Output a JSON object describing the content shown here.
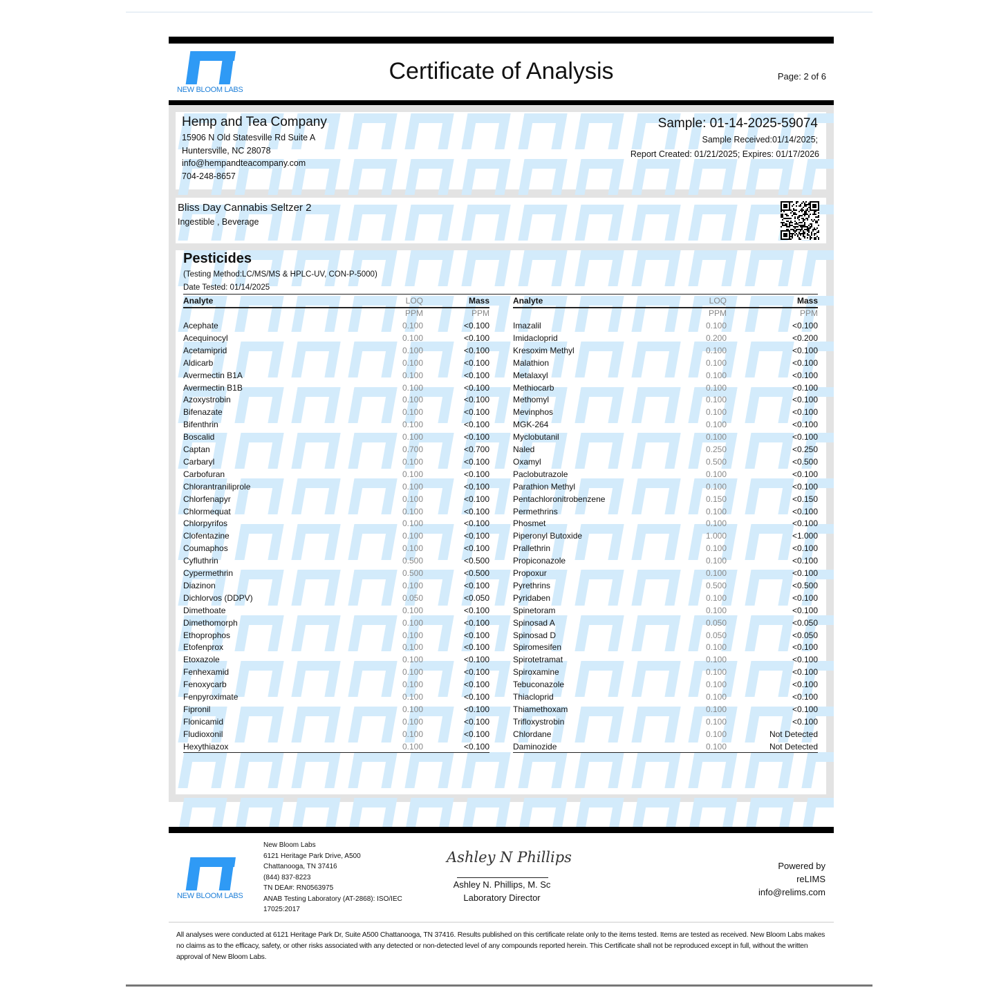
{
  "header": {
    "title": "Certificate of Analysis",
    "page": "Page: 2 of 6",
    "lab_logo_text": "NEW BLOOM LABS"
  },
  "client": {
    "name": "Hemp and Tea Company",
    "address1": "15906 N Old Statesville Rd Suite A",
    "address2": "Huntersville, NC 28078",
    "email": "info@hempandteacompany.com",
    "phone": "704-248-8657"
  },
  "sample": {
    "id": "Sample: 01-14-2025-59074",
    "received": "Sample Received:01/14/2025;",
    "created": "Report Created: 01/21/2025; Expires: 01/17/2026"
  },
  "product": {
    "name": "Bliss Day Cannabis Seltzer 2",
    "type": "Ingestible , Beverage",
    "qr_icon": "qr-code-icon"
  },
  "pesticides": {
    "title": "Pesticides",
    "method": "(Testing Method:LC/MS/MS & HPLC-UV, CON-P-5000)",
    "date_tested": "Date Tested: 01/14/2025",
    "columns": {
      "analyte": "Analyte",
      "loq": "LOQ",
      "mass": "Mass",
      "unit": "PPM"
    },
    "left": [
      [
        "Acephate",
        "0.100",
        "<0.100"
      ],
      [
        "Acequinocyl",
        "0.100",
        "<0.100"
      ],
      [
        "Acetamiprid",
        "0.100",
        "<0.100"
      ],
      [
        "Aldicarb",
        "0.100",
        "<0.100"
      ],
      [
        "Avermectin B1A",
        "0.100",
        "<0.100"
      ],
      [
        "Avermectin B1B",
        "0.100",
        "<0.100"
      ],
      [
        "Azoxystrobin",
        "0.100",
        "<0.100"
      ],
      [
        "Bifenazate",
        "0.100",
        "<0.100"
      ],
      [
        "Bifenthrin",
        "0.100",
        "<0.100"
      ],
      [
        "Boscalid",
        "0.100",
        "<0.100"
      ],
      [
        "Captan",
        "0.700",
        "<0.700"
      ],
      [
        "Carbaryl",
        "0.100",
        "<0.100"
      ],
      [
        "Carbofuran",
        "0.100",
        "<0.100"
      ],
      [
        "Chlorantraniliprole",
        "0.100",
        "<0.100"
      ],
      [
        "Chlorfenapyr",
        "0.100",
        "<0.100"
      ],
      [
        "Chlormequat",
        "0.100",
        "<0.100"
      ],
      [
        "Chlorpyrifos",
        "0.100",
        "<0.100"
      ],
      [
        "Clofentazine",
        "0.100",
        "<0.100"
      ],
      [
        "Coumaphos",
        "0.100",
        "<0.100"
      ],
      [
        "Cyfluthrin",
        "0.500",
        "<0.500"
      ],
      [
        "Cypermethrin",
        "0.500",
        "<0.500"
      ],
      [
        "Diazinon",
        "0.100",
        "<0.100"
      ],
      [
        "Dichlorvos (DDPV)",
        "0.050",
        "<0.050"
      ],
      [
        "Dimethoate",
        "0.100",
        "<0.100"
      ],
      [
        "Dimethomorph",
        "0.100",
        "<0.100"
      ],
      [
        "Ethoprophos",
        "0.100",
        "<0.100"
      ],
      [
        "Etofenprox",
        "0.100",
        "<0.100"
      ],
      [
        "Etoxazole",
        "0.100",
        "<0.100"
      ],
      [
        "Fenhexamid",
        "0.100",
        "<0.100"
      ],
      [
        "Fenoxycarb",
        "0.100",
        "<0.100"
      ],
      [
        "Fenpyroximate",
        "0.100",
        "<0.100"
      ],
      [
        "Fipronil",
        "0.100",
        "<0.100"
      ],
      [
        "Flonicamid",
        "0.100",
        "<0.100"
      ],
      [
        "Fludioxonil",
        "0.100",
        "<0.100"
      ],
      [
        "Hexythiazox",
        "0.100",
        "<0.100"
      ]
    ],
    "right": [
      [
        "Imazalil",
        "0.100",
        "<0.100"
      ],
      [
        "Imidacloprid",
        "0.200",
        "<0.200"
      ],
      [
        "Kresoxim Methyl",
        "0.100",
        "<0.100"
      ],
      [
        "Malathion",
        "0.100",
        "<0.100"
      ],
      [
        "Metalaxyl",
        "0.100",
        "<0.100"
      ],
      [
        "Methiocarb",
        "0.100",
        "<0.100"
      ],
      [
        "Methomyl",
        "0.100",
        "<0.100"
      ],
      [
        "Mevinphos",
        "0.100",
        "<0.100"
      ],
      [
        "MGK-264",
        "0.100",
        "<0.100"
      ],
      [
        "Myclobutanil",
        "0.100",
        "<0.100"
      ],
      [
        "Naled",
        "0.250",
        "<0.250"
      ],
      [
        "Oxamyl",
        "0.500",
        "<0.500"
      ],
      [
        "Paclobutrazole",
        "0.100",
        "<0.100"
      ],
      [
        "Parathion Methyl",
        "0.100",
        "<0.100"
      ],
      [
        "Pentachloronitrobenzene",
        "0.150",
        "<0.150"
      ],
      [
        "Permethrins",
        "0.100",
        "<0.100"
      ],
      [
        "Phosmet",
        "0.100",
        "<0.100"
      ],
      [
        "Piperonyl Butoxide",
        "1.000",
        "<1.000"
      ],
      [
        "Prallethrin",
        "0.100",
        "<0.100"
      ],
      [
        "Propiconazole",
        "0.100",
        "<0.100"
      ],
      [
        "Propoxur",
        "0.100",
        "<0.100"
      ],
      [
        "Pyrethrins",
        "0.500",
        "<0.500"
      ],
      [
        "Pyridaben",
        "0.100",
        "<0.100"
      ],
      [
        "Spinetoram",
        "0.100",
        "<0.100"
      ],
      [
        "Spinosad A",
        "0.050",
        "<0.050"
      ],
      [
        "Spinosad D",
        "0.050",
        "<0.050"
      ],
      [
        "Spiromesifen",
        "0.100",
        "<0.100"
      ],
      [
        "Spirotetramat",
        "0.100",
        "<0.100"
      ],
      [
        "Spiroxamine",
        "0.100",
        "<0.100"
      ],
      [
        "Tebuconazole",
        "0.100",
        "<0.100"
      ],
      [
        "Thiacloprid",
        "0.100",
        "<0.100"
      ],
      [
        "Thiamethoxam",
        "0.100",
        "<0.100"
      ],
      [
        "Trifloxystrobin",
        "0.100",
        "<0.100"
      ],
      [
        "Chlordane",
        "0.100",
        "Not Detected"
      ],
      [
        "Daminozide",
        "0.100",
        "Not Detected"
      ]
    ]
  },
  "footer": {
    "logo_text": "NEW BLOOM LABS",
    "lab_lines": [
      "New Bloom Labs",
      "6121 Heritage Park Drive, A500",
      "Chattanooga, TN 37416",
      "(844) 837-8223",
      "TN DEA#: RN0563975",
      "ANAB Testing Laboratory (AT-2868): ISO/IEC",
      "17025:2017"
    ],
    "signature": "Ashley N Phillips",
    "signer": "Ashley N. Phillips, M. Sc",
    "signer_title": "Laboratory Director",
    "powered_lines": [
      "Powered by",
      "reLIMS",
      "info@relims.com"
    ],
    "disclaimer": "All analyses were conducted at 6121 Heritage Park Dr, Suite A500 Chattanooga, TN 37416. Results published on this certificate relate only to the items tested. Items are tested as received. New Bloom Labs makes no claims as to the efficacy, safety, or other risks associated with any detected or non-detected level of any compounds reported herein. This Certificate shall not be reproduced except in full, without the written approval of New Bloom Labs."
  },
  "colors": {
    "brand": "#2f9af5",
    "watermark": "#d3ebfb"
  }
}
